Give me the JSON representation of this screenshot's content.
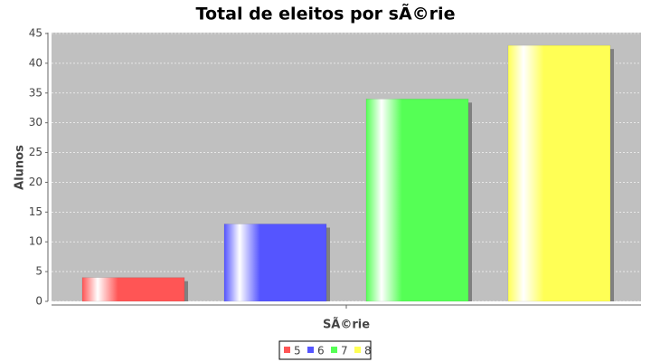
{
  "chart_data": {
    "type": "bar",
    "title": "Total de eleitos por sÃ©rie",
    "x_label": "SÃ©rie",
    "y_label": "Alunos",
    "categories": [
      null
    ],
    "series": [
      {
        "name": "5",
        "color": "#ff5555",
        "values": [
          4
        ]
      },
      {
        "name": "6",
        "color": "#5555ff",
        "values": [
          13
        ]
      },
      {
        "name": "7",
        "color": "#55ff55",
        "values": [
          34
        ]
      },
      {
        "name": "8",
        "color": "#ffff55",
        "values": [
          43
        ]
      }
    ],
    "ylim": [
      0,
      45
    ],
    "yticks": [
      0,
      5,
      10,
      15,
      20,
      25,
      30,
      35,
      40,
      45
    ],
    "grid": true,
    "legend": "bottom"
  }
}
